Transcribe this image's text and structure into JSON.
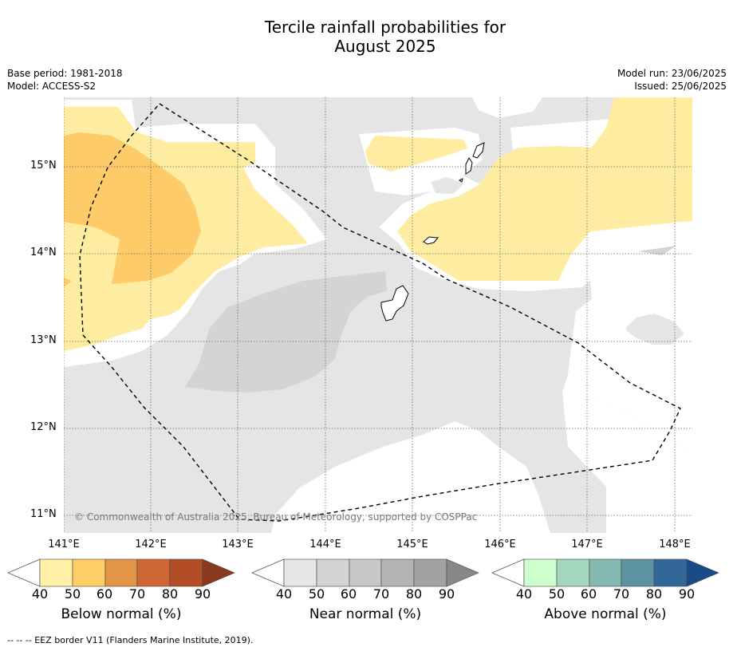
{
  "header": {
    "title_line1": "Tercile rainfall probabilities for",
    "title_line2": "August 2025",
    "base_period": "Base period: 1981-2018",
    "model": "Model: ACCESS-S2",
    "model_run": "Model run: 23/06/2025",
    "issued": "Issued: 25/06/2025"
  },
  "map": {
    "lat_labels": [
      "15°N",
      "14°N",
      "13°N",
      "12°N",
      "11°N"
    ],
    "lon_labels": [
      "141°E",
      "142°E",
      "143°E",
      "144°E",
      "145°E",
      "146°E",
      "147°E",
      "148°E"
    ],
    "copyright": "© Commonwealth of Australia 2025, Bureau of Meteorology, supported by COSPPac",
    "colors": {
      "land_outline": "#000000",
      "near_normal_40": "#e5e5e5",
      "near_normal_50": "#d4d4d4",
      "below_normal_40": "#feeda0",
      "below_normal_50": "#fdcb68"
    }
  },
  "colorbars": [
    {
      "label": "Below normal (%)",
      "ticks": [
        "40",
        "50",
        "60",
        "70",
        "80",
        "90"
      ],
      "colors": [
        "#fff0a6",
        "#fdcd66",
        "#e29447",
        "#cf6734",
        "#b24d28",
        "#8b3a1f"
      ]
    },
    {
      "label": "Near normal (%)",
      "ticks": [
        "40",
        "50",
        "60",
        "70",
        "80",
        "90"
      ],
      "colors": [
        "#e6e6e6",
        "#d4d4d4",
        "#c8c8c8",
        "#b4b4b4",
        "#a2a2a2",
        "#888888"
      ]
    },
    {
      "label": "Above normal (%)",
      "ticks": [
        "40",
        "50",
        "60",
        "70",
        "80",
        "90"
      ],
      "colors": [
        "#ccffcc",
        "#a4d6bd",
        "#84b8b1",
        "#5b93a0",
        "#336799",
        "#174c86"
      ]
    }
  ],
  "footnote": "--  --  -- EEZ border V11 (Flanders Marine Institute, 2019)."
}
